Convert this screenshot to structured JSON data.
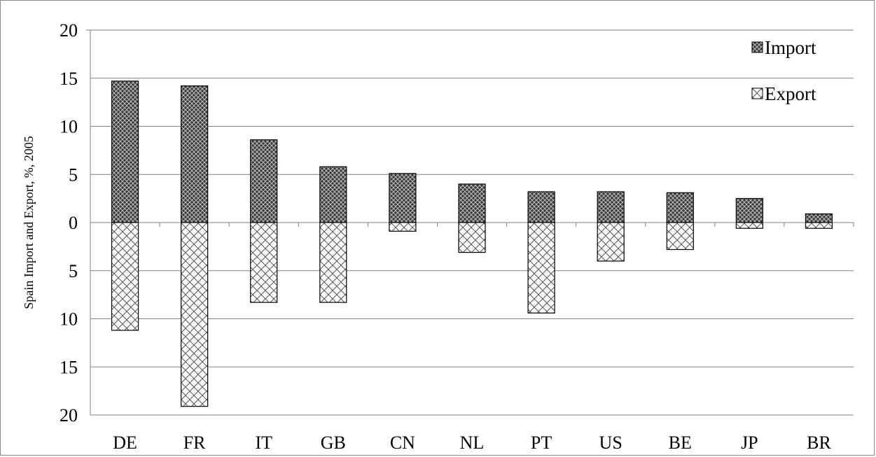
{
  "chart_data": {
    "type": "bar",
    "title": "",
    "xlabel": "",
    "ylabel": "Spain Import and Export, %, 2005",
    "categories": [
      "DE",
      "FR",
      "IT",
      "GB",
      "CN",
      "NL",
      "PT",
      "US",
      "BE",
      "JP",
      "BR"
    ],
    "series": [
      {
        "name": "Import",
        "values": [
          14.7,
          14.2,
          8.6,
          5.8,
          5.1,
          4.0,
          3.2,
          3.2,
          3.1,
          2.5,
          0.9
        ]
      },
      {
        "name": "Export",
        "values": [
          11.2,
          19.1,
          8.3,
          8.3,
          0.9,
          3.1,
          9.4,
          4.0,
          2.8,
          0.6,
          0.6
        ]
      }
    ],
    "export_direction": "plotted below zero",
    "y_tick_labels": [
      "20",
      "15",
      "10",
      "5",
      "0",
      "5",
      "10",
      "15",
      "20"
    ],
    "ylim": [
      -20,
      20
    ],
    "grid": true,
    "legend_position": "top-right",
    "colors": {
      "import_fill": "#444444",
      "export_fill": "#ffffff",
      "bar_stroke": "#000000",
      "grid": "#808080"
    }
  }
}
